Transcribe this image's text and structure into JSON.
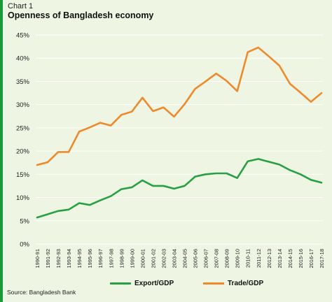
{
  "header": {
    "label": "Chart 1",
    "title": "Openness of Bangladesh economy"
  },
  "footer": {
    "source": "Source: Bangladesh Bank"
  },
  "colors": {
    "background": "#eef5e3",
    "accent": "#1a9a3c",
    "export": "#27a043",
    "trade": "#ee8a2c",
    "grid": "#ffffff"
  },
  "chart_data": {
    "type": "line",
    "title": "Openness of Bangladesh economy",
    "xlabel": "",
    "ylabel": "",
    "ylim": [
      0,
      45
    ],
    "yticks": [
      "0%",
      "5%",
      "10%",
      "15%",
      "20%",
      "25%",
      "30%",
      "35%",
      "40%",
      "45%"
    ],
    "ytick_values": [
      0,
      5,
      10,
      15,
      20,
      25,
      30,
      35,
      40,
      45
    ],
    "grid": true,
    "legend_position": "bottom",
    "x": [
      "1990-91",
      "1991-92",
      "1992-93",
      "1993-94",
      "1994-95",
      "1995-96",
      "1996-97",
      "1997-98",
      "1998-99",
      "1999-00",
      "2000-01",
      "2001-02",
      "2002-03",
      "2003-04",
      "2004-05",
      "2005-06",
      "2006-07",
      "2007-08",
      "2008-09",
      "2009-10",
      "2010-11",
      "2011-12",
      "2012-13",
      "2013-14",
      "2014-15",
      "2015-16",
      "2016-17",
      "2017-18"
    ],
    "series": [
      {
        "name": "Export/GDP",
        "color": "#27a043",
        "values": [
          5.7,
          6.4,
          7.1,
          7.4,
          8.8,
          8.4,
          9.4,
          10.3,
          11.8,
          12.2,
          13.7,
          12.5,
          12.5,
          11.9,
          12.5,
          14.5,
          15.0,
          15.2,
          15.2,
          14.2,
          17.8,
          18.3,
          17.7,
          17.1,
          15.9,
          15.0,
          13.8,
          13.2
        ]
      },
      {
        "name": "Trade/GDP",
        "color": "#ee8a2c",
        "values": [
          17.0,
          17.6,
          19.8,
          19.8,
          24.2,
          25.1,
          26.1,
          25.5,
          27.8,
          28.5,
          31.5,
          28.6,
          29.4,
          27.4,
          30.1,
          33.4,
          35.0,
          36.7,
          35.1,
          32.9,
          41.3,
          42.3,
          40.4,
          38.4,
          34.5,
          32.6,
          30.6,
          32.5
        ]
      }
    ]
  }
}
